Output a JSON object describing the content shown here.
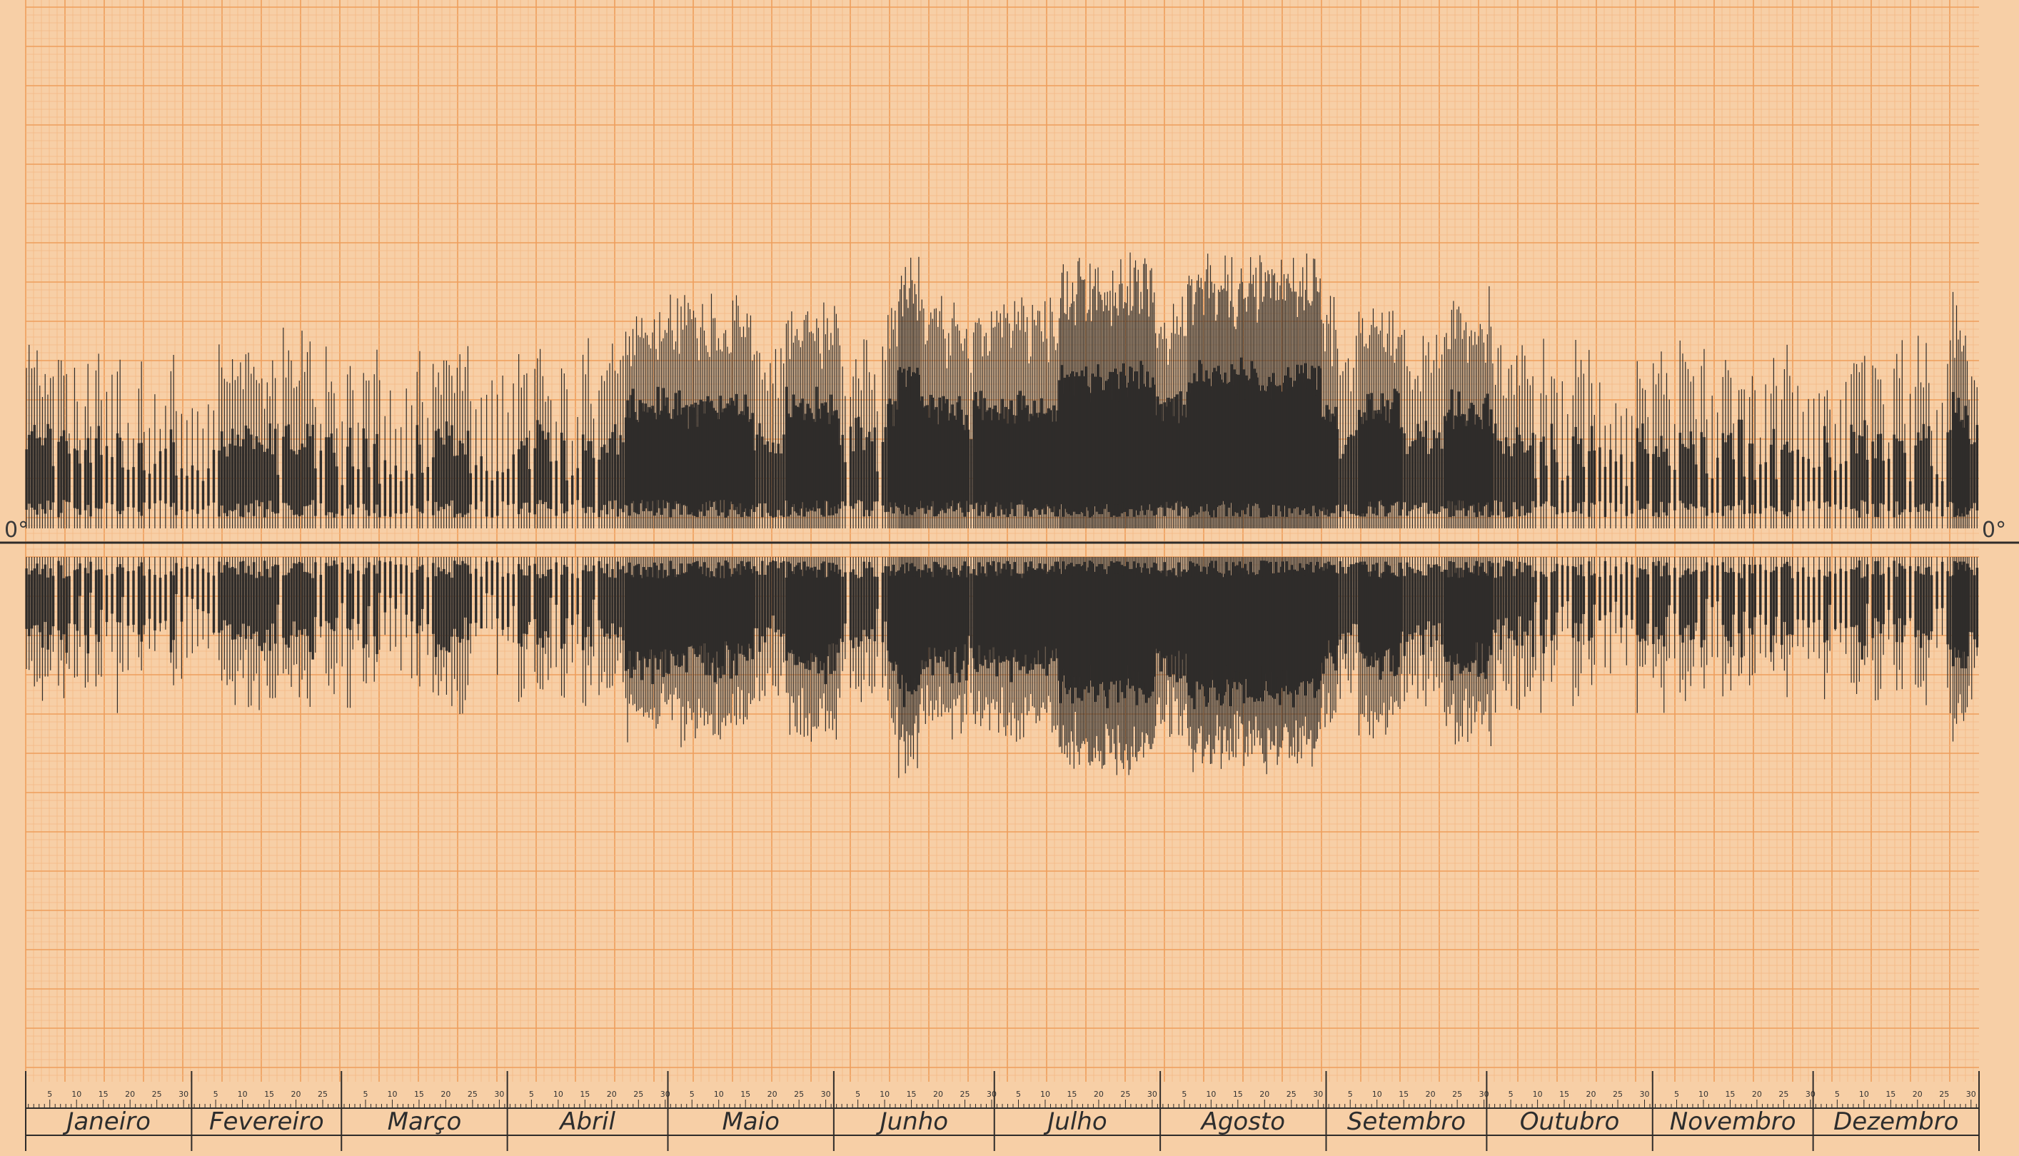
{
  "colors": {
    "paper": "#f7cfa6",
    "grid_minor": "#f3b985",
    "grid_major": "#ee9e5c",
    "ink": "#2f2c2a"
  },
  "chart_data": {
    "type": "bar",
    "zero_label_left": "0°",
    "zero_label_right": "0°",
    "months": [
      {
        "name": "Janeiro",
        "days": 31
      },
      {
        "name": "Fevereiro",
        "days": 28
      },
      {
        "name": "Março",
        "days": 31
      },
      {
        "name": "Abril",
        "days": 30
      },
      {
        "name": "Maio",
        "days": 31
      },
      {
        "name": "Junho",
        "days": 30
      },
      {
        "name": "Julho",
        "days": 31
      },
      {
        "name": "Agosto",
        "days": 31
      },
      {
        "name": "Setembro",
        "days": 30
      },
      {
        "name": "Outubro",
        "days": 31
      },
      {
        "name": "Novembro",
        "days": 30
      },
      {
        "name": "Dezembro",
        "days": 31
      }
    ],
    "day_tick_labels": [
      "5",
      "10",
      "15",
      "20",
      "25",
      "30"
    ],
    "activity_level": [
      1,
      1,
      1,
      1,
      1,
      0,
      1,
      1,
      0,
      1,
      0,
      1,
      0,
      1,
      0,
      0,
      0,
      1,
      0,
      0,
      0,
      1,
      0,
      0,
      0,
      0,
      0,
      1,
      0,
      0,
      0,
      0,
      0,
      0,
      0,
      0,
      1,
      1,
      1,
      1,
      1,
      1,
      1,
      1,
      1,
      1,
      1,
      0,
      1,
      1,
      1,
      1,
      1,
      1,
      0,
      0,
      1,
      1,
      0,
      0,
      1,
      0,
      0,
      1,
      0,
      1,
      0,
      0,
      0,
      0,
      0,
      0,
      0,
      1,
      0,
      0,
      1,
      1,
      1,
      1,
      1,
      1,
      1,
      0,
      0,
      0,
      0,
      0,
      0,
      0,
      0,
      0,
      1,
      1,
      0,
      1,
      1,
      1,
      0,
      0,
      1,
      0,
      0,
      0,
      1,
      1,
      0,
      1,
      1,
      1,
      1,
      1,
      2,
      2,
      2,
      2,
      2,
      2,
      2,
      2,
      2,
      2,
      2,
      2,
      2,
      2,
      2,
      2,
      2,
      2,
      2,
      2,
      2,
      2,
      2,
      2,
      1,
      1,
      1,
      1,
      1,
      1,
      2,
      2,
      2,
      2,
      2,
      2,
      2,
      2,
      2,
      2,
      1,
      0,
      1,
      1,
      1,
      1,
      1,
      0,
      1,
      2,
      2,
      3,
      3,
      3,
      3,
      2,
      2,
      2,
      2,
      2,
      2,
      2,
      2,
      2,
      1,
      2,
      2,
      2,
      2,
      2,
      2,
      2,
      2,
      2,
      2,
      2,
      2,
      2,
      2,
      2,
      2,
      3,
      3,
      3,
      3,
      3,
      3,
      3,
      3,
      3,
      3,
      3,
      3,
      3,
      3,
      3,
      3,
      3,
      3,
      2,
      2,
      2,
      2,
      2,
      2,
      3,
      3,
      3,
      3,
      3,
      3,
      3,
      3,
      3,
      3,
      3,
      3,
      3,
      3,
      3,
      3,
      3,
      3,
      3,
      3,
      3,
      3,
      3,
      3,
      3,
      2,
      2,
      2,
      1,
      1,
      1,
      1,
      2,
      2,
      2,
      2,
      2,
      2,
      2,
      2,
      1,
      1,
      1,
      1,
      1,
      1,
      1,
      1,
      2,
      2,
      2,
      2,
      2,
      2,
      2,
      2,
      2,
      1,
      1,
      1,
      1,
      1,
      1,
      1,
      1,
      0,
      1,
      0,
      1,
      0,
      0,
      0,
      1,
      1,
      0,
      1,
      0,
      0,
      0,
      0,
      0,
      0,
      0,
      0,
      1,
      1,
      0,
      1,
      1,
      1,
      0,
      0,
      1,
      1,
      1,
      0,
      1,
      0,
      0,
      0,
      1,
      1,
      0,
      1,
      0,
      1,
      0,
      0,
      0,
      1,
      0,
      1,
      1,
      0,
      0,
      0,
      0,
      0,
      0,
      1,
      0,
      0,
      0,
      0,
      1,
      1,
      1,
      0,
      1,
      1,
      0,
      0,
      1,
      1,
      0,
      0,
      1,
      1,
      1,
      0,
      0,
      0,
      1,
      2,
      2,
      2,
      1,
      1,
      2
    ]
  }
}
